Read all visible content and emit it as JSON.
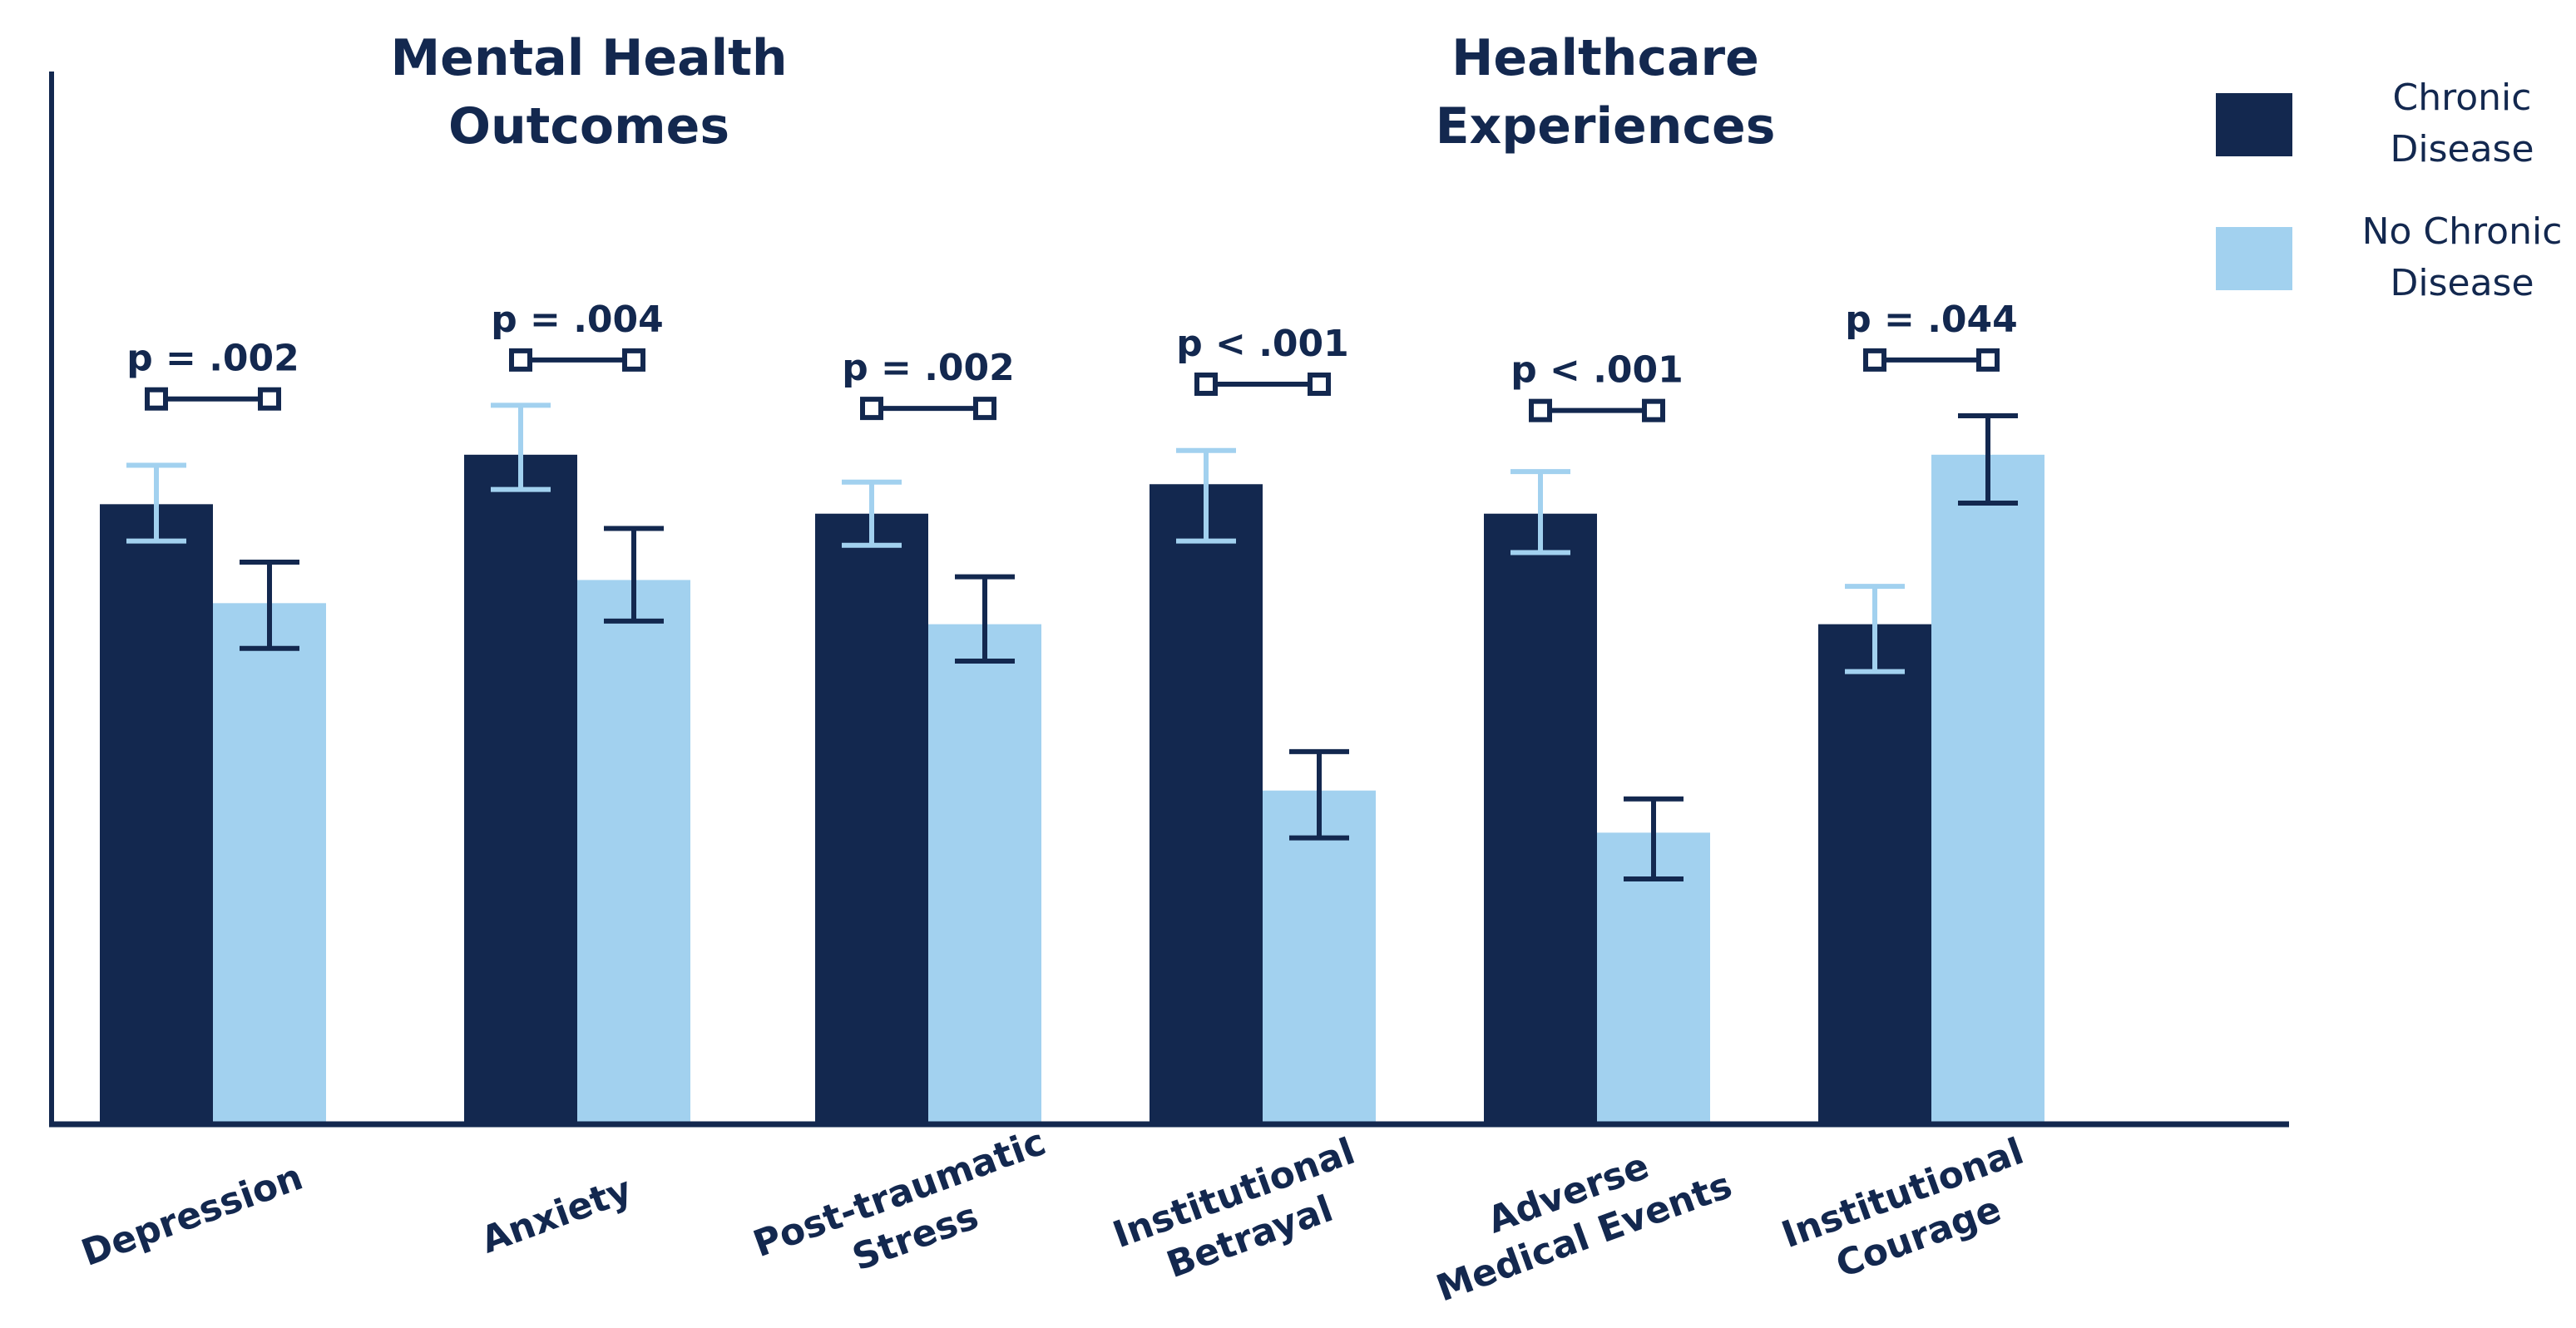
{
  "colors": {
    "chronic": "#13284f",
    "no_chronic": "#a2d1ef",
    "axis": "#13284f",
    "text": "#13284f"
  },
  "chart_data": {
    "type": "bar",
    "group_titles": [
      {
        "lines": [
          "Mental Health",
          "Outcomes"
        ]
      },
      {
        "lines": [
          "Healthcare",
          "Experiences"
        ]
      }
    ],
    "categories": [
      {
        "lines": [
          "Depression"
        ]
      },
      {
        "lines": [
          "Anxiety"
        ]
      },
      {
        "lines": [
          "Post-traumatic",
          "Stress"
        ]
      },
      {
        "lines": [
          "Institutional",
          "Betrayal"
        ]
      },
      {
        "lines": [
          "Adverse",
          "Medical Events"
        ]
      },
      {
        "lines": [
          "Institutional",
          "Courage"
        ]
      }
    ],
    "series": [
      {
        "name": "Chronic Disease",
        "legend_lines": [
          "Chronic",
          "Disease"
        ],
        "values": [
          0.589,
          0.636,
          0.58,
          0.608,
          0.58,
          0.475
        ],
        "err_low": [
          0.554,
          0.603,
          0.55,
          0.554,
          0.543,
          0.43
        ],
        "err_high": [
          0.626,
          0.683,
          0.61,
          0.64,
          0.62,
          0.511
        ]
      },
      {
        "name": "No Chronic Disease",
        "legend_lines": [
          "No Chronic",
          "Disease"
        ],
        "values": [
          0.495,
          0.517,
          0.475,
          0.317,
          0.277,
          0.636
        ],
        "err_low": [
          0.452,
          0.478,
          0.44,
          0.272,
          0.233,
          0.59
        ],
        "err_high": [
          0.534,
          0.566,
          0.52,
          0.354,
          0.309,
          0.673
        ]
      }
    ],
    "p_values": [
      "p = .002",
      "p = .004",
      "p = .002",
      "p < .001",
      "p < .001",
      "p = .044"
    ],
    "p_heights": [
      0.689,
      0.726,
      0.68,
      0.703,
      0.678,
      0.726
    ],
    "ylim": [
      0,
      1
    ]
  }
}
